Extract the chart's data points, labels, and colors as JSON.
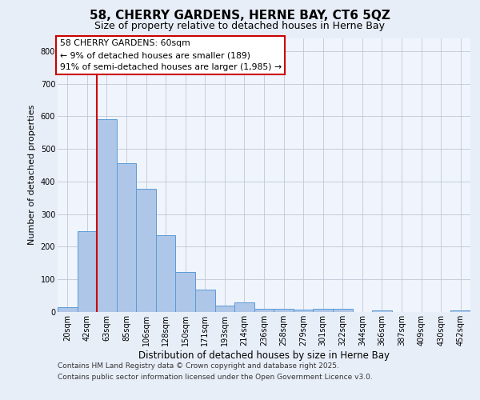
{
  "title1": "58, CHERRY GARDENS, HERNE BAY, CT6 5QZ",
  "title2": "Size of property relative to detached houses in Herne Bay",
  "xlabel": "Distribution of detached houses by size in Herne Bay",
  "ylabel": "Number of detached properties",
  "categories": [
    "20sqm",
    "42sqm",
    "63sqm",
    "85sqm",
    "106sqm",
    "128sqm",
    "150sqm",
    "171sqm",
    "193sqm",
    "214sqm",
    "236sqm",
    "258sqm",
    "279sqm",
    "301sqm",
    "322sqm",
    "344sqm",
    "366sqm",
    "387sqm",
    "409sqm",
    "430sqm",
    "452sqm"
  ],
  "values": [
    15,
    248,
    590,
    455,
    378,
    235,
    122,
    68,
    20,
    30,
    11,
    11,
    8,
    10,
    10,
    0,
    5,
    0,
    0,
    0,
    5
  ],
  "bar_color": "#aec6e8",
  "bar_edge_color": "#5b9bd5",
  "vline_x_idx": 2,
  "vline_color": "#cc0000",
  "annotation_text": "58 CHERRY GARDENS: 60sqm\n← 9% of detached houses are smaller (189)\n91% of semi-detached houses are larger (1,985) →",
  "annotation_box_color": "#ffffff",
  "annotation_box_edge": "#cc0000",
  "ylim": [
    0,
    840
  ],
  "yticks": [
    0,
    100,
    200,
    300,
    400,
    500,
    600,
    700,
    800
  ],
  "bg_color": "#e8eef8",
  "plot_bg": "#f0f4fc",
  "footer1": "Contains HM Land Registry data © Crown copyright and database right 2025.",
  "footer2": "Contains public sector information licensed under the Open Government Licence v3.0.",
  "title1_fontsize": 11,
  "title2_fontsize": 9,
  "ylabel_fontsize": 8,
  "xlabel_fontsize": 8.5,
  "tick_fontsize": 7,
  "annot_fontsize": 7.8,
  "footer_fontsize": 6.5
}
